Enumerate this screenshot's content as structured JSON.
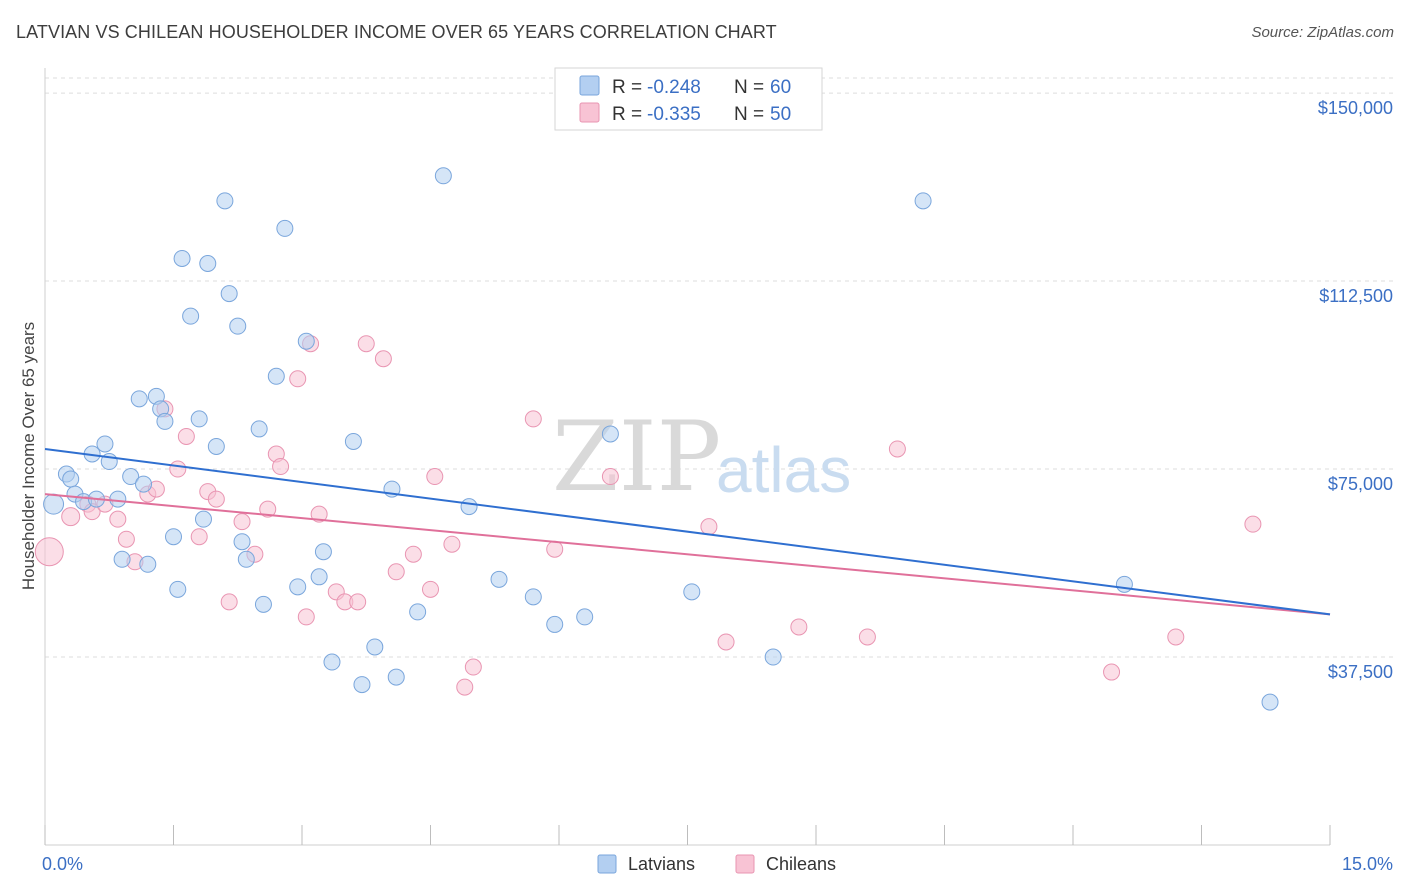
{
  "header": {
    "title": "LATVIAN VS CHILEAN HOUSEHOLDER INCOME OVER 65 YEARS CORRELATION CHART",
    "source": "Source: ZipAtlas.com"
  },
  "watermark": {
    "zip": "ZIP",
    "atlas": "atlas"
  },
  "legend": {
    "r_label": "R =",
    "n_label": "N =",
    "items": [
      {
        "r": "-0.248",
        "n": "60",
        "color": "#a9c8ef"
      },
      {
        "r": "-0.335",
        "n": "50",
        "color": "#f5b6cb"
      }
    ]
  },
  "colors": {
    "latvians_fill": "#b3cff1",
    "latvians_stroke": "#7aa6dc",
    "latvians_line": "#2f6fd0",
    "chileans_fill": "#f8c3d4",
    "chileans_stroke": "#e995b2",
    "chileans_line": "#e0709a",
    "axis_label": "#3b6fc4",
    "grid": "#dedede"
  },
  "chart_data": {
    "type": "scatter",
    "title": "LATVIAN VS CHILEAN HOUSEHOLDER INCOME OVER 65 YEARS CORRELATION CHART",
    "xlabel": "",
    "ylabel": "Householder Income Over 65 years",
    "xlim": [
      0,
      15
    ],
    "ylim": [
      0,
      155000
    ],
    "x_tick_labels": [
      "0.0%",
      "15.0%"
    ],
    "y_ticks": [
      37500,
      75000,
      112500,
      150000
    ],
    "y_tick_labels": [
      "$37,500",
      "$75,000",
      "$112,500",
      "$150,000"
    ],
    "grid": true,
    "legend_position": "top-center",
    "series": [
      {
        "name": "Latvians",
        "trend": {
          "x": [
            0,
            15
          ],
          "y": [
            79000,
            46000
          ]
        },
        "points": [
          [
            0.1,
            68000,
            10
          ],
          [
            0.25,
            74000,
            8
          ],
          [
            0.3,
            73000,
            8
          ],
          [
            0.35,
            70000,
            8
          ],
          [
            0.45,
            68500,
            8
          ],
          [
            0.55,
            78000,
            8
          ],
          [
            0.6,
            69000,
            8
          ],
          [
            0.7,
            80000,
            8
          ],
          [
            0.75,
            76500,
            8
          ],
          [
            0.85,
            69000,
            8
          ],
          [
            0.9,
            57000,
            8
          ],
          [
            1.0,
            73500,
            8
          ],
          [
            1.1,
            89000,
            8
          ],
          [
            1.15,
            72000,
            8
          ],
          [
            1.2,
            56000,
            8
          ],
          [
            1.3,
            89500,
            8
          ],
          [
            1.35,
            87000,
            8
          ],
          [
            1.4,
            84500,
            8
          ],
          [
            1.5,
            61500,
            8
          ],
          [
            1.55,
            51000,
            8
          ],
          [
            1.6,
            117000,
            8
          ],
          [
            1.7,
            105500,
            8
          ],
          [
            1.8,
            85000,
            8
          ],
          [
            1.85,
            65000,
            8
          ],
          [
            1.9,
            116000,
            8
          ],
          [
            2.0,
            79500,
            8
          ],
          [
            2.1,
            128500,
            8
          ],
          [
            2.15,
            110000,
            8
          ],
          [
            2.25,
            103500,
            8
          ],
          [
            2.3,
            60500,
            8
          ],
          [
            2.35,
            57000,
            8
          ],
          [
            2.5,
            83000,
            8
          ],
          [
            2.55,
            48000,
            8
          ],
          [
            2.7,
            93500,
            8
          ],
          [
            2.8,
            123000,
            8
          ],
          [
            2.95,
            51500,
            8
          ],
          [
            3.05,
            100500,
            8
          ],
          [
            3.2,
            53500,
            8
          ],
          [
            3.25,
            58500,
            8
          ],
          [
            3.35,
            36500,
            8
          ],
          [
            3.6,
            80500,
            8
          ],
          [
            3.7,
            32000,
            8
          ],
          [
            3.85,
            39500,
            8
          ],
          [
            4.05,
            71000,
            8
          ],
          [
            4.1,
            33500,
            8
          ],
          [
            4.35,
            46500,
            8
          ],
          [
            4.65,
            133500,
            8
          ],
          [
            4.95,
            67500,
            8
          ],
          [
            5.3,
            53000,
            8
          ],
          [
            5.7,
            49500,
            8
          ],
          [
            5.95,
            44000,
            8
          ],
          [
            6.3,
            45500,
            8
          ],
          [
            6.6,
            82000,
            8
          ],
          [
            7.55,
            50500,
            8
          ],
          [
            8.5,
            37500,
            8
          ],
          [
            10.25,
            128500,
            8
          ],
          [
            12.6,
            52000,
            8
          ],
          [
            14.3,
            28500,
            8
          ]
        ]
      },
      {
        "name": "Chileans",
        "trend": {
          "x": [
            0,
            15
          ],
          "y": [
            70000,
            46000
          ]
        },
        "points": [
          [
            0.05,
            58500,
            14
          ],
          [
            0.3,
            65500,
            9
          ],
          [
            0.5,
            68000,
            8
          ],
          [
            0.55,
            66500,
            8
          ],
          [
            0.7,
            68000,
            8
          ],
          [
            0.85,
            65000,
            8
          ],
          [
            0.95,
            61000,
            8
          ],
          [
            1.05,
            56500,
            8
          ],
          [
            1.2,
            70000,
            8
          ],
          [
            1.3,
            71000,
            8
          ],
          [
            1.4,
            87000,
            8
          ],
          [
            1.55,
            75000,
            8
          ],
          [
            1.65,
            81500,
            8
          ],
          [
            1.8,
            61500,
            8
          ],
          [
            1.9,
            70500,
            8
          ],
          [
            2.0,
            69000,
            8
          ],
          [
            2.15,
            48500,
            8
          ],
          [
            2.3,
            64500,
            8
          ],
          [
            2.45,
            58000,
            8
          ],
          [
            2.6,
            67000,
            8
          ],
          [
            2.7,
            78000,
            8
          ],
          [
            2.75,
            75500,
            8
          ],
          [
            2.95,
            93000,
            8
          ],
          [
            3.05,
            45500,
            8
          ],
          [
            3.1,
            100000,
            8
          ],
          [
            3.2,
            66000,
            8
          ],
          [
            3.4,
            50500,
            8
          ],
          [
            3.5,
            48500,
            8
          ],
          [
            3.65,
            48500,
            8
          ],
          [
            3.75,
            100000,
            8
          ],
          [
            3.95,
            97000,
            8
          ],
          [
            4.1,
            54500,
            8
          ],
          [
            4.3,
            58000,
            8
          ],
          [
            4.5,
            51000,
            8
          ],
          [
            4.55,
            73500,
            8
          ],
          [
            4.75,
            60000,
            8
          ],
          [
            4.9,
            31500,
            8
          ],
          [
            5.0,
            35500,
            8
          ],
          [
            5.7,
            85000,
            8
          ],
          [
            5.95,
            59000,
            8
          ],
          [
            6.6,
            73500,
            8
          ],
          [
            7.75,
            63500,
            8
          ],
          [
            7.95,
            40500,
            8
          ],
          [
            8.8,
            43500,
            8
          ],
          [
            9.6,
            41500,
            8
          ],
          [
            9.95,
            79000,
            8
          ],
          [
            12.45,
            34500,
            8
          ],
          [
            13.2,
            41500,
            8
          ],
          [
            14.1,
            64000,
            8
          ]
        ]
      }
    ]
  },
  "bottom_legend": [
    {
      "label": "Latvians"
    },
    {
      "label": "Chileans"
    }
  ]
}
